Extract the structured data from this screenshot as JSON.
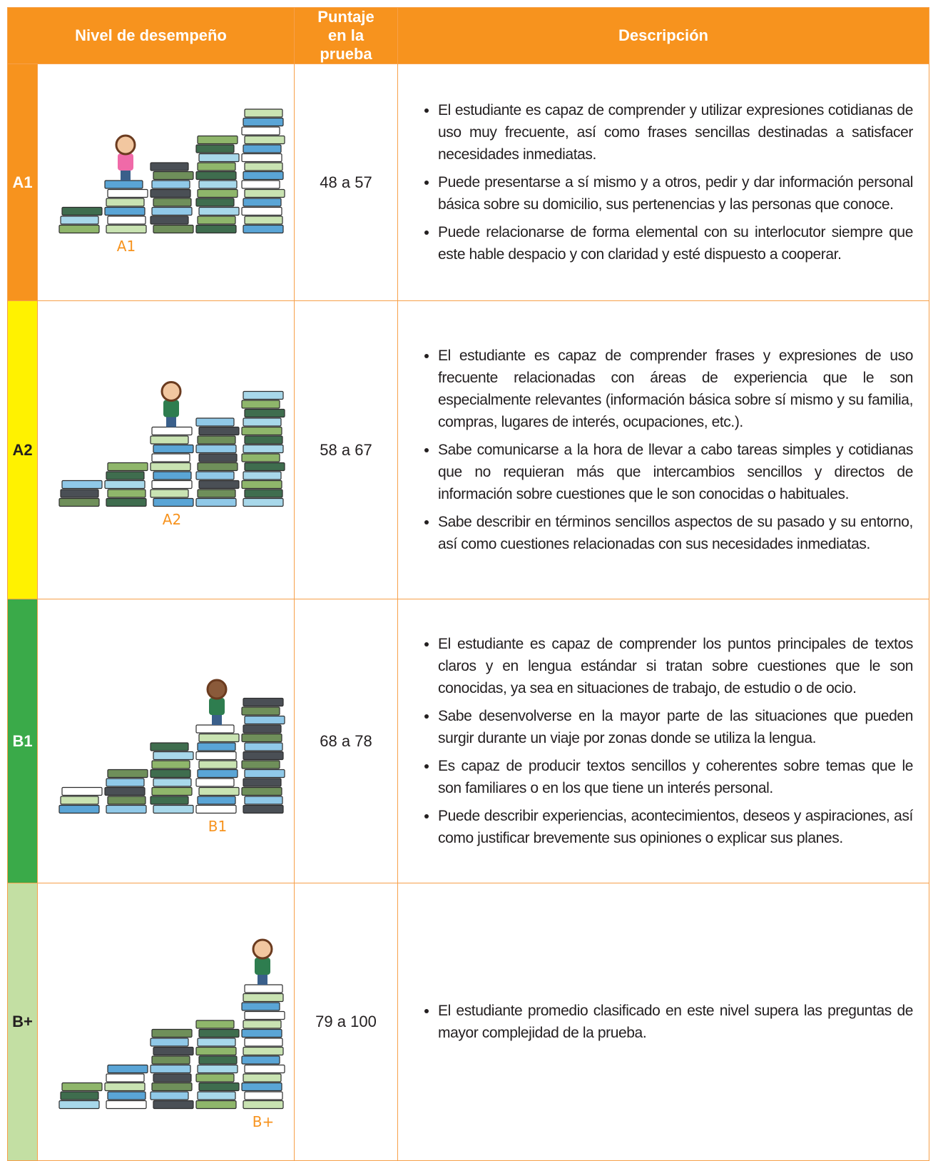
{
  "table": {
    "header": [
      "Nivel de desempeño",
      "Puntaje en la prueba",
      "Descripción"
    ],
    "rows": [
      {
        "level": "A1",
        "image_label": "A1",
        "score": "48 a 57",
        "description": [
          "El estudiante es capaz de comprender y utilizar expresiones cotidianas de uso muy frecuente, así como frases sencillas destinadas a satisfacer necesidades inmediatas.",
          "Puede presentarse a sí mismo y a otros, pedir y dar información personal básica sobre su domicilio, sus pertenencias y las personas que conoce.",
          "Puede relacionarse de forma elemental con su interlocutor siempre que este hable despacio y con claridad y esté dispuesto a cooperar."
        ]
      },
      {
        "level": "A2",
        "image_label": "A2",
        "score": "58 a 67",
        "description": [
          "El estudiante es capaz de comprender frases y expresiones de uso frecuente relacionadas con áreas de experiencia que le son especialmente relevantes (información básica sobre sí mismo y su familia, compras, lugares de interés, ocupaciones, etc.).",
          "Sabe comunicarse a la hora de llevar a cabo tareas simples y cotidianas que no requieran más que intercambios sencillos y directos de información sobre cuestiones que le son conocidas o habituales.",
          "Sabe describir en términos sencillos aspectos de su pasado y su entorno, así como cuestiones relacionadas con sus necesidades inmediatas."
        ]
      },
      {
        "level": "B1",
        "image_label": "B1",
        "score": "68 a 78",
        "description": [
          "El estudiante es capaz de comprender los puntos principales de textos claros y en lengua estándar si tratan sobre cuestiones que le son conocidas, ya sea en situaciones de trabajo, de estudio o de ocio.",
          "Sabe desenvolverse en la mayor parte de las situaciones que pueden surgir durante un viaje por zonas donde se utiliza la lengua.",
          "Es capaz de producir textos sencillos y coherentes sobre temas que le son familiares o en los que tiene un interés personal.",
          "Puede describir experiencias, acontecimientos, deseos y aspiraciones, así como justificar brevemente sus opiniones o explicar sus planes."
        ]
      },
      {
        "level": "B+",
        "image_label": "B+",
        "score": "79 a 100",
        "description": [
          "El estudiante promedio clasificado en este nivel supera las preguntas de mayor complejidad de la prueba."
        ]
      }
    ]
  }
}
